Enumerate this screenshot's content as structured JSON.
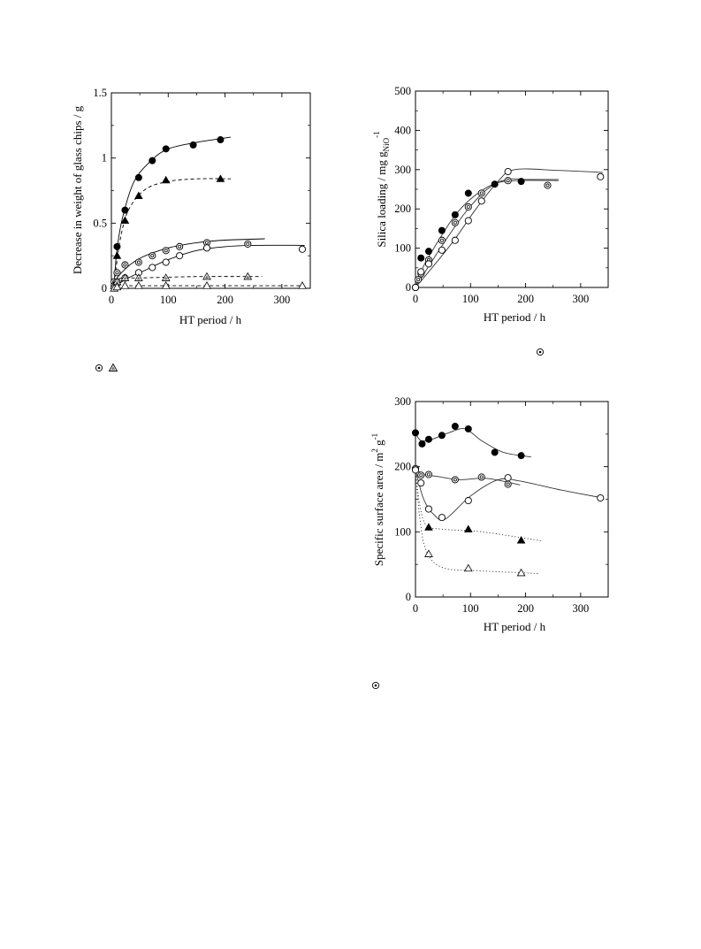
{
  "chart_data": [
    {
      "type": "scatter",
      "xlabel": "HT period / h",
      "ylabel": "Decrease in weight of glass chips / g",
      "xlim": [
        0,
        350
      ],
      "ylim": [
        0,
        1.5
      ],
      "xticks": [
        "0",
        "100",
        "200",
        "300"
      ],
      "yticks": [
        "0",
        "0.5",
        "1",
        "1.5"
      ],
      "series": [
        {
          "marker": "filled-circle",
          "points": [
            [
              10,
              0.32
            ],
            [
              24,
              0.6
            ],
            [
              48,
              0.85
            ],
            [
              72,
              0.98
            ],
            [
              96,
              1.07
            ],
            [
              144,
              1.1
            ],
            [
              192,
              1.14
            ]
          ],
          "curve": {
            "style": "solid",
            "points": [
              [
                5,
                0.05
              ],
              [
                10,
                0.3
              ],
              [
                20,
                0.55
              ],
              [
                40,
                0.82
              ],
              [
                70,
                0.98
              ],
              [
                100,
                1.07
              ],
              [
                150,
                1.12
              ],
              [
                210,
                1.16
              ]
            ]
          }
        },
        {
          "marker": "filled-triangle",
          "points": [
            [
              10,
              0.25
            ],
            [
              24,
              0.52
            ],
            [
              48,
              0.71
            ],
            [
              96,
              0.83
            ],
            [
              192,
              0.84
            ]
          ],
          "curve": {
            "style": "dashed",
            "points": [
              [
                5,
                0.04
              ],
              [
                15,
                0.36
              ],
              [
                30,
                0.6
              ],
              [
                60,
                0.76
              ],
              [
                100,
                0.82
              ],
              [
                150,
                0.84
              ],
              [
                210,
                0.84
              ]
            ]
          }
        },
        {
          "marker": "double-circle",
          "points": [
            [
              5,
              0.05
            ],
            [
              10,
              0.12
            ],
            [
              24,
              0.18
            ],
            [
              48,
              0.2
            ],
            [
              72,
              0.25
            ],
            [
              96,
              0.29
            ],
            [
              120,
              0.32
            ],
            [
              168,
              0.35
            ],
            [
              240,
              0.34
            ]
          ],
          "curve": {
            "style": "solid",
            "points": [
              [
                0,
                0.02
              ],
              [
                20,
                0.13
              ],
              [
                50,
                0.23
              ],
              [
                100,
                0.31
              ],
              [
                150,
                0.35
              ],
              [
                200,
                0.37
              ],
              [
                270,
                0.38
              ]
            ]
          }
        },
        {
          "marker": "open-circle",
          "points": [
            [
              5,
              0.02
            ],
            [
              10,
              0.05
            ],
            [
              24,
              0.08
            ],
            [
              48,
              0.12
            ],
            [
              72,
              0.16
            ],
            [
              96,
              0.2
            ],
            [
              120,
              0.25
            ],
            [
              168,
              0.31
            ],
            [
              336,
              0.3
            ]
          ],
          "curve": {
            "style": "solid",
            "points": [
              [
                0,
                0.0
              ],
              [
                30,
                0.08
              ],
              [
                60,
                0.14
              ],
              [
                100,
                0.22
              ],
              [
                150,
                0.29
              ],
              [
                200,
                0.32
              ],
              [
                250,
                0.33
              ],
              [
                340,
                0.33
              ]
            ]
          }
        },
        {
          "marker": "grey-triangle",
          "points": [
            [
              5,
              0.02
            ],
            [
              10,
              0.05
            ],
            [
              24,
              0.08
            ],
            [
              48,
              0.08
            ],
            [
              96,
              0.08
            ],
            [
              168,
              0.09
            ],
            [
              240,
              0.09
            ]
          ],
          "curve": {
            "style": "dashed",
            "points": [
              [
                0,
                0.0
              ],
              [
                10,
                0.06
              ],
              [
                20,
                0.08
              ],
              [
                50,
                0.08
              ],
              [
                150,
                0.09
              ],
              [
                265,
                0.09
              ]
            ]
          }
        },
        {
          "marker": "open-triangle",
          "points": [
            [
              5,
              0.0
            ],
            [
              10,
              0.01
            ],
            [
              24,
              0.02
            ],
            [
              48,
              0.02
            ],
            [
              96,
              0.02
            ],
            [
              168,
              0.02
            ],
            [
              336,
              0.02
            ]
          ],
          "curve": {
            "style": "dashed",
            "points": [
              [
                0,
                0.0
              ],
              [
                10,
                0.02
              ],
              [
                30,
                0.02
              ],
              [
                150,
                0.02
              ],
              [
                340,
                0.02
              ]
            ]
          }
        }
      ]
    },
    {
      "type": "scatter",
      "xlabel": "HT period / h",
      "ylabel_main": "Silica loading / mg g",
      "ylabel_sub": "NiO",
      "ylabel_sup": "-1",
      "xlim": [
        0,
        350
      ],
      "ylim": [
        0,
        500
      ],
      "xticks": [
        "0",
        "100",
        "200",
        "300"
      ],
      "yticks": [
        "0",
        "100",
        "200",
        "300",
        "400",
        "500"
      ],
      "series": [
        {
          "marker": "filled-circle",
          "points": [
            [
              0,
              0
            ],
            [
              10,
              75
            ],
            [
              24,
              92
            ],
            [
              48,
              145
            ],
            [
              72,
              185
            ],
            [
              96,
              240
            ],
            [
              144,
              263
            ],
            [
              192,
              270
            ]
          ],
          "curve": {
            "style": "solid",
            "points": [
              [
                0,
                0
              ],
              [
                15,
                55
              ],
              [
                40,
                115
              ],
              [
                70,
                180
              ],
              [
                100,
                225
              ],
              [
                140,
                262
              ],
              [
                180,
                272
              ],
              [
                260,
                272
              ]
            ]
          }
        },
        {
          "marker": "double-circle",
          "points": [
            [
              0,
              0
            ],
            [
              5,
              20
            ],
            [
              10,
              35
            ],
            [
              24,
              70
            ],
            [
              48,
              120
            ],
            [
              72,
              165
            ],
            [
              96,
              205
            ],
            [
              120,
              240
            ],
            [
              168,
              272
            ],
            [
              240,
              260
            ]
          ],
          "curve": {
            "style": "solid",
            "points": [
              [
                0,
                0
              ],
              [
                20,
                45
              ],
              [
                50,
                110
              ],
              [
                90,
                190
              ],
              [
                130,
                250
              ],
              [
                165,
                275
              ],
              [
                200,
                275
              ],
              [
                260,
                275
              ]
            ]
          }
        },
        {
          "marker": "open-circle",
          "points": [
            [
              0,
              0
            ],
            [
              10,
              40
            ],
            [
              24,
              60
            ],
            [
              48,
              95
            ],
            [
              72,
              120
            ],
            [
              96,
              170
            ],
            [
              120,
              220
            ],
            [
              168,
              295
            ],
            [
              336,
              282
            ]
          ],
          "curve": {
            "style": "solid",
            "points": [
              [
                0,
                0
              ],
              [
                30,
                50
              ],
              [
                70,
                120
              ],
              [
                110,
                200
              ],
              [
                150,
                270
              ],
              [
                180,
                300
              ],
              [
                260,
                298
              ],
              [
                340,
                293
              ]
            ]
          }
        }
      ]
    },
    {
      "type": "scatter",
      "xlabel": "HT period / h",
      "ylabel_main": "Specific surface area / m",
      "ylabel_sup1": "2",
      "ylabel_mid": " g",
      "ylabel_sup2": "-1",
      "xlim": [
        0,
        350
      ],
      "ylim": [
        0,
        300
      ],
      "xticks": [
        "0",
        "100",
        "200",
        "300"
      ],
      "yticks": [
        "0",
        "100",
        "200",
        "300"
      ],
      "series": [
        {
          "marker": "filled-circle",
          "points": [
            [
              0,
              252
            ],
            [
              12,
              235
            ],
            [
              24,
              242
            ],
            [
              48,
              248
            ],
            [
              72,
              262
            ],
            [
              96,
              258
            ],
            [
              144,
              222
            ],
            [
              192,
              217
            ]
          ],
          "curve": {
            "style": "solid",
            "points": [
              [
                0,
                252
              ],
              [
                10,
                240
              ],
              [
                30,
                242
              ],
              [
                60,
                252
              ],
              [
                90,
                258
              ],
              [
                120,
                240
              ],
              [
                160,
                222
              ],
              [
                210,
                215
              ]
            ]
          }
        },
        {
          "marker": "double-circle",
          "points": [
            [
              0,
              197
            ],
            [
              10,
              187
            ],
            [
              24,
              188
            ],
            [
              72,
              180
            ],
            [
              120,
              184
            ],
            [
              168,
              173
            ]
          ],
          "curve": {
            "style": "solid",
            "points": [
              [
                0,
                197
              ],
              [
                15,
                188
              ],
              [
                40,
                185
              ],
              [
                80,
                180
              ],
              [
                130,
                182
              ],
              [
                190,
                172
              ]
            ]
          }
        },
        {
          "marker": "open-circle",
          "points": [
            [
              0,
              195
            ],
            [
              10,
              175
            ],
            [
              24,
              135
            ],
            [
              48,
              122
            ],
            [
              96,
              148
            ],
            [
              168,
              183
            ],
            [
              336,
              152
            ]
          ],
          "curve": {
            "style": "solid",
            "points": [
              [
                0,
                195
              ],
              [
                15,
                150
              ],
              [
                35,
                125
              ],
              [
                55,
                120
              ],
              [
                100,
                155
              ],
              [
                150,
                180
              ],
              [
                190,
                178
              ],
              [
                260,
                165
              ],
              [
                340,
                152
              ]
            ]
          }
        },
        {
          "marker": "filled-triangle",
          "points": [
            [
              24,
              107
            ],
            [
              96,
              104
            ],
            [
              192,
              87
            ]
          ],
          "curve": {
            "style": "dotted",
            "points": [
              [
                0,
                195
              ],
              [
                8,
                140
              ],
              [
                20,
                110
              ],
              [
                50,
                104
              ],
              [
                120,
                100
              ],
              [
                230,
                86
              ]
            ]
          }
        },
        {
          "marker": "open-triangle",
          "points": [
            [
              24,
              66
            ],
            [
              96,
              44
            ],
            [
              192,
              37
            ]
          ],
          "curve": {
            "style": "dotted",
            "points": [
              [
                0,
                195
              ],
              [
                8,
                120
              ],
              [
                20,
                70
              ],
              [
                50,
                45
              ],
              [
                120,
                40
              ],
              [
                225,
                36
              ]
            ]
          }
        }
      ]
    }
  ],
  "legend_glyphs": {
    "panel1": [
      "◎",
      "▲"
    ],
    "panel2": [
      "◎"
    ],
    "panel3": [
      "◎"
    ]
  }
}
